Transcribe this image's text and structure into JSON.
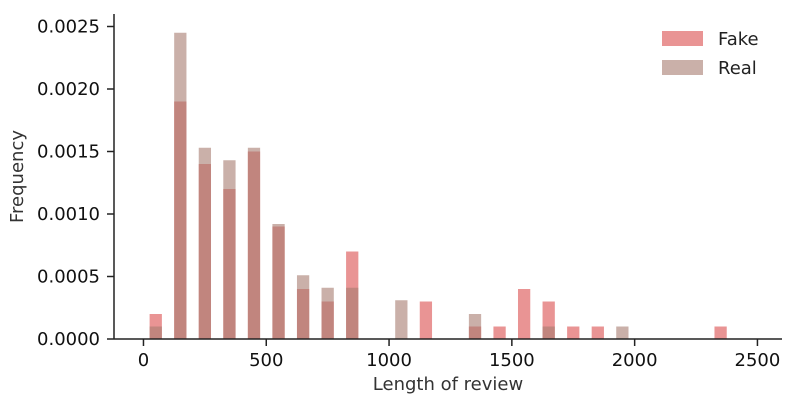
{
  "chart_data": {
    "type": "bar",
    "title": "",
    "xlabel": "Length of review",
    "ylabel": "Frequency",
    "xlim": [
      -120,
      2600
    ],
    "ylim": [
      0,
      0.0026
    ],
    "x_ticks": [
      0,
      500,
      1000,
      1500,
      2000,
      2500
    ],
    "x_tick_labels": [
      "0",
      "500",
      "1000",
      "1500",
      "2000",
      "2500"
    ],
    "y_ticks": [
      0,
      0.0005,
      0.001,
      0.0015,
      0.002,
      0.0025
    ],
    "y_tick_labels": [
      "0.0000",
      "0.0005",
      "0.0010",
      "0.0015",
      "0.0020",
      "0.0025"
    ],
    "bin_centers": [
      50,
      150,
      250,
      350,
      450,
      550,
      650,
      750,
      850,
      1050,
      1150,
      1350,
      1450,
      1550,
      1650,
      1750,
      1850,
      1950,
      2350
    ],
    "bar_width": 50,
    "grid": false,
    "legend_position": "top-right",
    "series": [
      {
        "name": "Fake",
        "color": "#e06666",
        "values": [
          0.0002,
          0.0019,
          0.0014,
          0.0012,
          0.0015,
          0.0009,
          0.0004,
          0.0003,
          0.0007,
          0,
          0.0003,
          0.0001,
          0.0001,
          0.0004,
          0.0003,
          0.0001,
          0.0001,
          0,
          0.0001
        ]
      },
      {
        "name": "Real",
        "color": "#a67b70",
        "values": [
          0.0001,
          0.00245,
          0.00153,
          0.00143,
          0.00153,
          0.00092,
          0.00051,
          0.00041,
          0.00041,
          0.00031,
          0,
          0.0002,
          0,
          0,
          0.0001,
          0,
          0,
          0.0001,
          0
        ]
      }
    ]
  }
}
